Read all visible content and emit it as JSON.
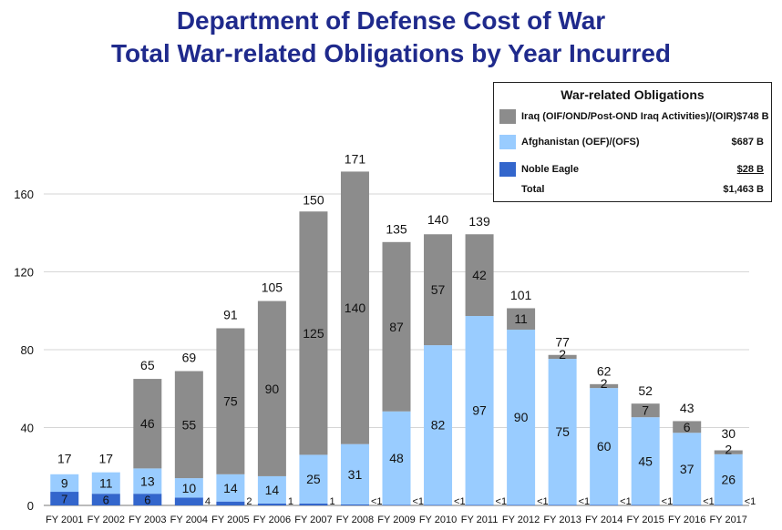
{
  "title_line1": "Department of Defense Cost of War",
  "title_line2": "Total War-related Obligations by Year Incurred",
  "legend": {
    "title": "War-related Obligations",
    "items": [
      {
        "label": "Iraq (OIF/OND/Post-OND Iraq Activities)/(OIR)",
        "value": "$748 B",
        "color": "#8c8c8c"
      },
      {
        "label": "Afghanistan (OEF)/(OFS)",
        "value": "$687 B",
        "color": "#99ccff"
      },
      {
        "label": "Noble Eagle",
        "value": "$28 B",
        "color": "#3366cc"
      },
      {
        "label": "Total",
        "value": "$1,463 B",
        "color": ""
      }
    ]
  },
  "chart_data": {
    "type": "bar",
    "stacked": true,
    "categories": [
      "FY 2001",
      "FY 2002",
      "FY 2003",
      "FY 2004",
      "FY 2005",
      "FY 2006",
      "FY 2007",
      "FY 2008",
      "FY 2009",
      "FY 2010",
      "FY 2011",
      "FY 2012",
      "FY 2013",
      "FY 2014",
      "FY 2015",
      "FY 2016",
      "FY 2017"
    ],
    "series": [
      {
        "name": "Noble Eagle",
        "color": "#3366cc",
        "values": [
          7,
          6,
          6,
          4,
          2,
          1,
          1,
          0.5,
          0.3,
          0.3,
          0.3,
          0.3,
          0.3,
          0.3,
          0.3,
          0.3,
          0.3
        ],
        "labels": [
          "7",
          "6",
          "6",
          "4",
          "2",
          "1",
          "1",
          "<1",
          "<1",
          "<1",
          "<1",
          "<1",
          "<1",
          "<1",
          "<1",
          "<1",
          "<1"
        ]
      },
      {
        "name": "Afghanistan (OEF)/(OFS)",
        "color": "#99ccff",
        "values": [
          9,
          11,
          13,
          10,
          14,
          14,
          25,
          31,
          48,
          82,
          97,
          90,
          75,
          60,
          45,
          37,
          26
        ],
        "labels": [
          "9",
          "11",
          "13",
          "10",
          "14",
          "14",
          "25",
          "31",
          "48",
          "82",
          "97",
          "90",
          "75",
          "60",
          "45",
          "37",
          "26"
        ]
      },
      {
        "name": "Iraq (OIF/OND/Post-OND Iraq Activities)/(OIR)",
        "color": "#8c8c8c",
        "values": [
          0,
          0,
          46,
          55,
          75,
          90,
          125,
          140,
          87,
          57,
          42,
          11,
          2,
          2,
          7,
          6,
          2
        ],
        "labels": [
          "",
          "",
          "46",
          "55",
          "75",
          "90",
          "125",
          "140",
          "87",
          "57",
          "42",
          "11",
          "2",
          "2",
          "7",
          "6",
          "2"
        ]
      }
    ],
    "totals": [
      "17",
      "17",
      "65",
      "69",
      "91",
      "105",
      "150",
      "171",
      "135",
      "140",
      "139",
      "101",
      "77",
      "62",
      "52",
      "43",
      "30"
    ],
    "yticks": [
      0,
      40,
      80,
      120,
      160
    ],
    "ylim": [
      0,
      180
    ],
    "xlabel": "",
    "ylabel": "",
    "grid": true,
    "legend_position": "top-right"
  }
}
